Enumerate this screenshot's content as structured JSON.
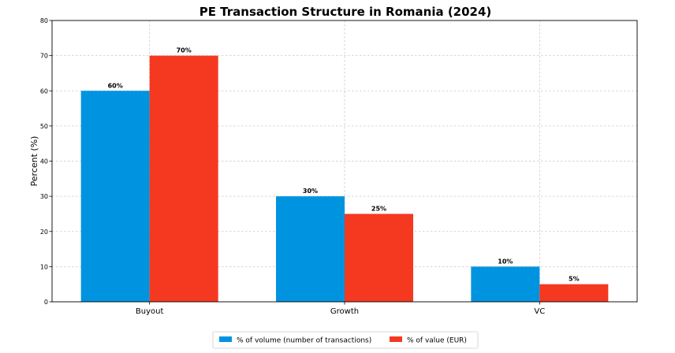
{
  "chart_data": {
    "type": "bar",
    "title": "PE Transaction Structure in Romania (2024)",
    "xlabel": "",
    "ylabel": "Percent (%)",
    "categories": [
      "Buyout",
      "Growth",
      "VC"
    ],
    "ylim": [
      0,
      80
    ],
    "yticks": [
      "0",
      "10",
      "20",
      "30",
      "40",
      "50",
      "60",
      "70",
      "80"
    ],
    "grid": true,
    "legend_position": "bottom-center",
    "series": [
      {
        "name": "% of volume (number of transactions)",
        "color": "#0094e0",
        "values": [
          60,
          30,
          10
        ],
        "labels": [
          "60%",
          "30%",
          "10%"
        ]
      },
      {
        "name": "% of value (EUR)",
        "color": "#f53820",
        "values": [
          70,
          25,
          5
        ],
        "labels": [
          "70%",
          "25%",
          "5%"
        ]
      }
    ]
  }
}
